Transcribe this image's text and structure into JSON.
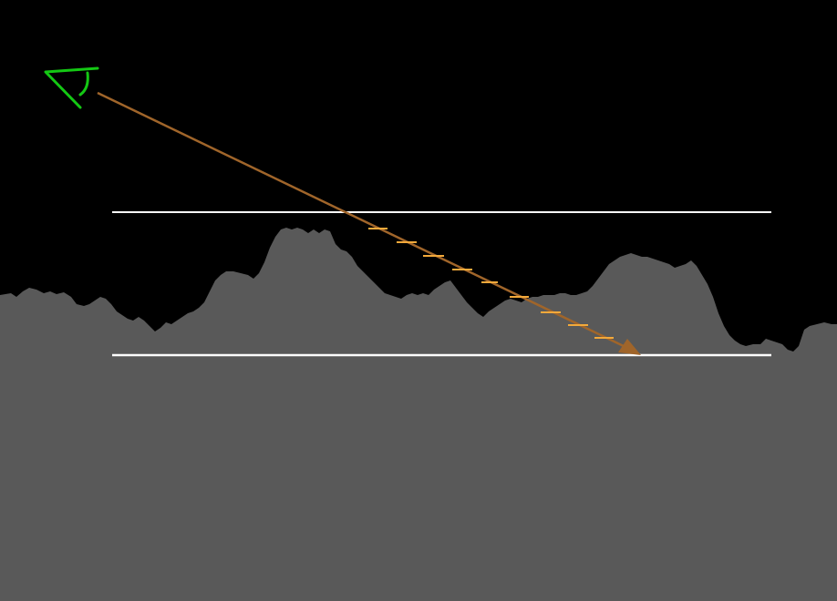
{
  "diagram": {
    "background_color": "#000000",
    "terrain_color": "#595959",
    "bound_line_color": "#ffffff",
    "ray_color": "#a0652a",
    "step_marker_color": "#f2a93b",
    "eye_icon_color": "#14c814",
    "eye_icon": "eye-viewer-icon",
    "arrowhead_icon": "arrowhead-icon",
    "step_marker_count": 9
  }
}
